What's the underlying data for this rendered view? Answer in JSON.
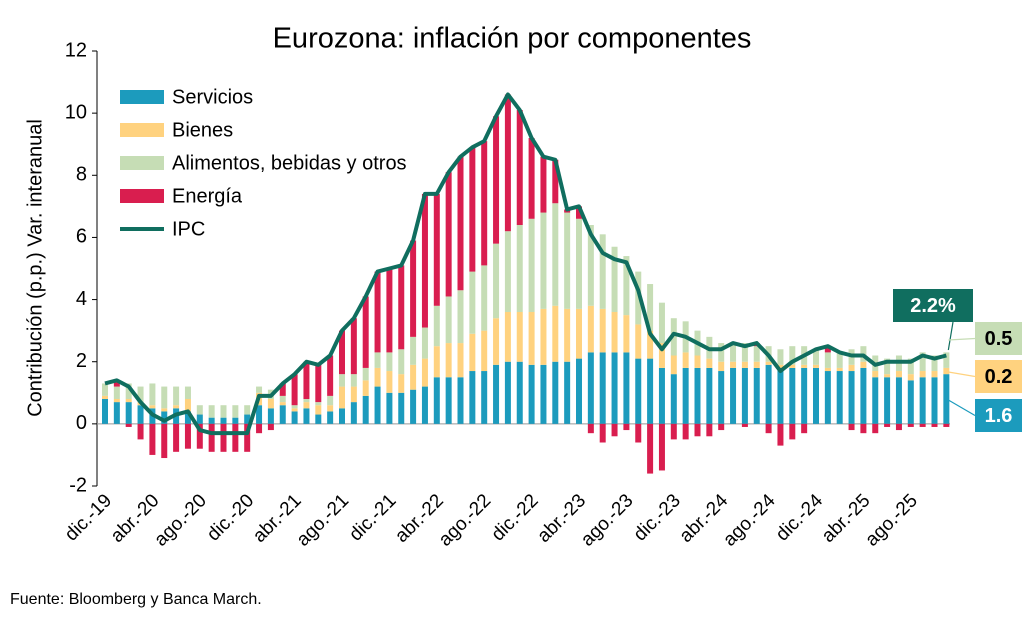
{
  "chart_data": {
    "type": "bar",
    "stacked": true,
    "title": "Eurozona: inflación por componentes",
    "y_label": "Contribución (p.p.) Var. interanual",
    "source": "Fuente: Bloomberg y Banca March.",
    "categories": [
      "dic.-19",
      null,
      null,
      null,
      "abr.-20",
      null,
      null,
      null,
      "ago.-20",
      null,
      null,
      null,
      "dic.-20",
      null,
      null,
      null,
      "abr.-21",
      null,
      null,
      null,
      "ago.-21",
      null,
      null,
      null,
      "dic.-21",
      null,
      null,
      null,
      "abr.-22",
      null,
      null,
      null,
      "ago.-22",
      null,
      null,
      null,
      "dic.-22",
      null,
      null,
      null,
      "abr.-23",
      null,
      null,
      null,
      "ago.-23",
      null,
      null,
      null,
      "dic.-23",
      null,
      null,
      null,
      "abr.-24",
      null,
      null,
      null,
      "ago.-24",
      null,
      null,
      null,
      "dic.-24",
      null,
      null,
      null,
      "abr.-25",
      null,
      null,
      null,
      "ago.-25",
      null,
      null,
      null
    ],
    "ylim": [
      -2,
      12
    ],
    "yticks": [
      -2,
      0,
      2,
      4,
      6,
      8,
      10,
      12
    ],
    "grid": false,
    "legend": "top-left",
    "series": [
      {
        "name": "Servicios",
        "color": "#1c9bbd",
        "values": [
          0.8,
          0.7,
          0.7,
          0.6,
          0.5,
          0.4,
          0.5,
          0.4,
          0.3,
          0.2,
          0.2,
          0.2,
          0.3,
          0.6,
          0.5,
          0.6,
          0.4,
          0.5,
          0.3,
          0.4,
          0.5,
          0.7,
          0.9,
          1.2,
          1.0,
          1.0,
          1.1,
          1.2,
          1.5,
          1.5,
          1.5,
          1.7,
          1.7,
          1.9,
          2.0,
          2.0,
          1.9,
          1.9,
          2.0,
          2.0,
          2.1,
          2.3,
          2.3,
          2.3,
          2.3,
          2.1,
          2.1,
          1.8,
          1.6,
          1.8,
          1.8,
          1.8,
          1.7,
          1.8,
          1.8,
          1.8,
          1.9,
          1.8,
          1.8,
          1.8,
          1.8,
          1.7,
          1.7,
          1.7,
          1.8,
          1.5,
          1.5,
          1.5,
          1.4,
          1.5,
          1.5,
          1.6
        ]
      },
      {
        "name": "Bienes",
        "color": "#ffd27f",
        "values": [
          0.1,
          0.1,
          0.1,
          0.1,
          0.1,
          0.1,
          0.1,
          0.4,
          0.0,
          0.0,
          0.0,
          0.0,
          0.0,
          0.4,
          0.3,
          0.1,
          0.1,
          0.2,
          0.3,
          0.2,
          0.7,
          0.5,
          0.5,
          0.6,
          0.7,
          0.6,
          0.8,
          0.9,
          1.0,
          1.1,
          1.1,
          1.2,
          1.3,
          1.5,
          1.6,
          1.6,
          1.7,
          1.8,
          1.8,
          1.7,
          1.6,
          1.5,
          1.4,
          1.3,
          1.2,
          1.1,
          0.9,
          0.8,
          0.6,
          0.5,
          0.4,
          0.3,
          0.3,
          0.2,
          0.2,
          0.2,
          0.1,
          0.1,
          0.1,
          0.1,
          0.1,
          0.1,
          0.1,
          0.2,
          0.2,
          0.2,
          0.1,
          0.2,
          0.2,
          0.2,
          0.2,
          0.2
        ]
      },
      {
        "name": "Alimentos, bebidas y otros",
        "color": "#c6ddb5",
        "values": [
          0.4,
          0.4,
          0.5,
          0.5,
          0.7,
          0.7,
          0.6,
          0.4,
          0.3,
          0.4,
          0.4,
          0.4,
          0.3,
          0.2,
          0.3,
          0.2,
          0.1,
          0.1,
          0.1,
          0.3,
          0.4,
          0.4,
          0.4,
          0.5,
          0.6,
          0.8,
          0.9,
          1.0,
          1.3,
          1.5,
          1.7,
          2.0,
          2.1,
          2.4,
          2.6,
          2.8,
          3.0,
          3.1,
          3.3,
          3.1,
          2.9,
          2.6,
          2.4,
          2.1,
          1.9,
          1.7,
          1.5,
          1.3,
          1.2,
          1.0,
          0.8,
          0.7,
          0.6,
          0.6,
          0.6,
          0.5,
          0.5,
          0.5,
          0.6,
          0.6,
          0.5,
          0.5,
          0.5,
          0.5,
          0.5,
          0.5,
          0.5,
          0.5,
          0.5,
          0.6,
          0.5,
          0.5
        ]
      },
      {
        "name": "Energía",
        "color": "#d91e4f",
        "values": [
          0.0,
          0.2,
          -0.1,
          -0.5,
          -1.0,
          -1.1,
          -0.9,
          -0.8,
          -0.8,
          -0.9,
          -0.9,
          -0.9,
          -0.9,
          -0.3,
          -0.2,
          0.4,
          1.0,
          1.2,
          1.2,
          1.3,
          1.4,
          1.8,
          2.3,
          2.6,
          2.7,
          2.7,
          3.1,
          4.3,
          3.6,
          4.0,
          4.3,
          4.0,
          4.0,
          4.1,
          4.4,
          3.7,
          2.6,
          1.8,
          1.4,
          0.1,
          0.4,
          -0.3,
          -0.6,
          -0.4,
          -0.2,
          -0.6,
          -1.6,
          -1.5,
          -0.5,
          -0.5,
          -0.4,
          -0.4,
          -0.2,
          0.0,
          -0.1,
          0.1,
          -0.3,
          -0.7,
          -0.5,
          -0.3,
          0.0,
          0.2,
          0.0,
          -0.2,
          -0.3,
          -0.3,
          -0.1,
          -0.2,
          -0.1,
          -0.1,
          -0.1,
          -0.1
        ]
      },
      {
        "name": "IPC",
        "type": "line",
        "color": "#106e5f",
        "values": [
          1.3,
          1.4,
          1.2,
          0.7,
          0.3,
          0.1,
          0.3,
          0.4,
          -0.2,
          -0.3,
          -0.3,
          -0.3,
          -0.3,
          0.9,
          0.9,
          1.3,
          1.6,
          2.0,
          1.9,
          2.2,
          3.0,
          3.4,
          4.1,
          4.9,
          5.0,
          5.1,
          5.9,
          7.4,
          7.4,
          8.1,
          8.6,
          8.9,
          9.1,
          9.9,
          10.6,
          10.1,
          9.2,
          8.6,
          8.5,
          6.9,
          7.0,
          6.1,
          5.5,
          5.3,
          5.2,
          4.3,
          2.9,
          2.4,
          2.9,
          2.8,
          2.6,
          2.4,
          2.4,
          2.6,
          2.5,
          2.6,
          2.2,
          1.7,
          2.0,
          2.2,
          2.4,
          2.5,
          2.3,
          2.2,
          2.2,
          1.9,
          2.0,
          2.0,
          2.0,
          2.2,
          2.1,
          2.2
        ]
      }
    ],
    "annotations": [
      "2.2%",
      "0.5",
      "0.2",
      "1.6"
    ]
  }
}
